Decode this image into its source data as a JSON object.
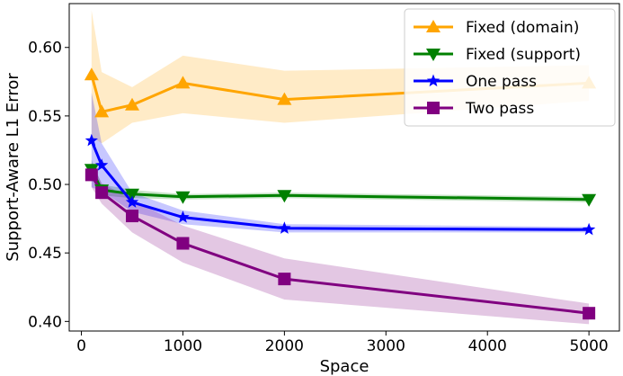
{
  "chart_data": {
    "type": "line",
    "title": "",
    "xlabel": "Space",
    "ylabel": "Support-Aware L1 Error",
    "xlim": [
      -120,
      5300
    ],
    "ylim": [
      0.393,
      0.632
    ],
    "xticks": [
      0,
      1000,
      2000,
      3000,
      4000,
      5000
    ],
    "xtick_labels": [
      "0",
      "1000",
      "2000",
      "3000",
      "4000",
      "5000"
    ],
    "yticks": [
      0.4,
      0.45,
      0.5,
      0.55,
      0.6
    ],
    "ytick_labels": [
      "0.40",
      "0.45",
      "0.50",
      "0.55",
      "0.60"
    ],
    "grid": false,
    "legend_position": "top-right",
    "x": [
      100,
      200,
      500,
      1000,
      2000,
      5000
    ],
    "series": [
      {
        "name": "Fixed (domain)",
        "color": "#ffa500",
        "marker": "triangle-up",
        "values": [
          0.58,
          0.553,
          0.558,
          0.574,
          0.562,
          0.574
        ],
        "lower": [
          0.535,
          0.53,
          0.545,
          0.552,
          0.545,
          0.561
        ],
        "upper": [
          0.627,
          0.582,
          0.571,
          0.594,
          0.583,
          0.587
        ]
      },
      {
        "name": "Fixed (support)",
        "color": "#008000",
        "marker": "triangle-down",
        "values": [
          0.511,
          0.496,
          0.493,
          0.491,
          0.492,
          0.489
        ],
        "lower": [
          0.504,
          0.492,
          0.49,
          0.489,
          0.49,
          0.487
        ],
        "upper": [
          0.518,
          0.5,
          0.496,
          0.493,
          0.494,
          0.491
        ]
      },
      {
        "name": "One pass",
        "color": "#0000ff",
        "marker": "star",
        "values": [
          0.532,
          0.514,
          0.487,
          0.476,
          0.468,
          0.467
        ],
        "lower": [
          0.498,
          0.495,
          0.48,
          0.471,
          0.465,
          0.465
        ],
        "upper": [
          0.567,
          0.53,
          0.494,
          0.481,
          0.471,
          0.469
        ]
      },
      {
        "name": "Two pass",
        "color": "#800080",
        "marker": "square",
        "values": [
          0.507,
          0.494,
          0.477,
          0.457,
          0.431,
          0.406
        ],
        "lower": [
          0.498,
          0.486,
          0.465,
          0.443,
          0.416,
          0.398
        ],
        "upper": [
          0.516,
          0.501,
          0.489,
          0.47,
          0.446,
          0.413
        ]
      }
    ]
  }
}
